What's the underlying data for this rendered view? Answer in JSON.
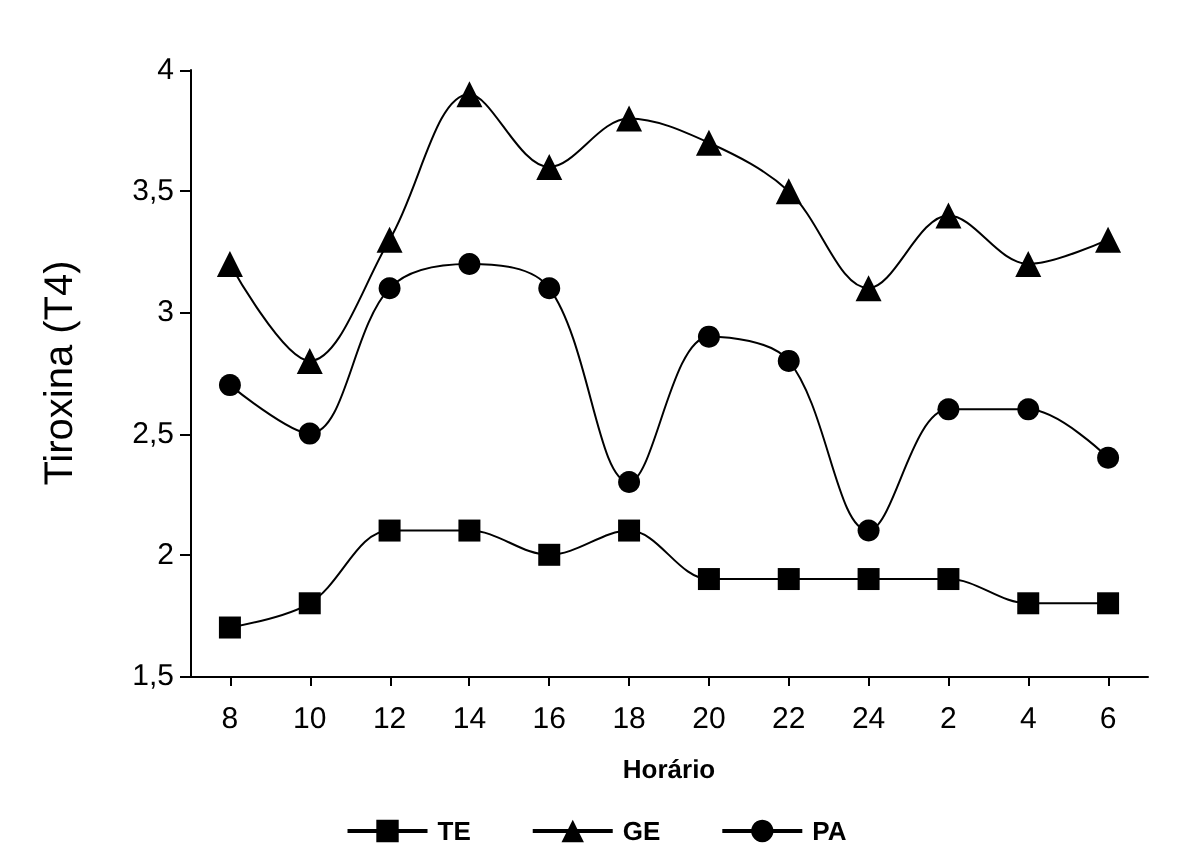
{
  "chart_data": {
    "type": "line",
    "xlabel": "Horário",
    "ylabel": "Tiroxina (T4)",
    "categories": [
      "8",
      "10",
      "12",
      "14",
      "16",
      "18",
      "20",
      "22",
      "24",
      "2",
      "4",
      "6"
    ],
    "series": [
      {
        "name": "TE",
        "color": "#000000",
        "marker": "square",
        "values": [
          1.7,
          1.8,
          2.1,
          2.1,
          2.0,
          2.1,
          1.9,
          1.9,
          1.9,
          1.9,
          1.8,
          1.8
        ]
      },
      {
        "name": "GE",
        "color": "#000000",
        "marker": "triangle",
        "values": [
          3.2,
          2.8,
          3.3,
          3.9,
          3.6,
          3.8,
          3.7,
          3.5,
          3.1,
          3.4,
          3.2,
          3.3
        ]
      },
      {
        "name": "PA",
        "color": "#000000",
        "marker": "circle",
        "values": [
          2.7,
          2.5,
          3.1,
          3.2,
          3.1,
          2.3,
          2.9,
          2.8,
          2.1,
          2.6,
          2.6,
          2.4
        ]
      }
    ],
    "ylim": [
      1.5,
      4
    ],
    "yticks": [
      {
        "value": 1.5,
        "label": "1,5"
      },
      {
        "value": 2,
        "label": "2"
      },
      {
        "value": 2.5,
        "label": "2,5"
      },
      {
        "value": 3,
        "label": "3"
      },
      {
        "value": 3.5,
        "label": "3,5"
      },
      {
        "value": 4,
        "label": "4"
      }
    ],
    "grid": false,
    "legend": "bottom",
    "line_style": "solid"
  }
}
